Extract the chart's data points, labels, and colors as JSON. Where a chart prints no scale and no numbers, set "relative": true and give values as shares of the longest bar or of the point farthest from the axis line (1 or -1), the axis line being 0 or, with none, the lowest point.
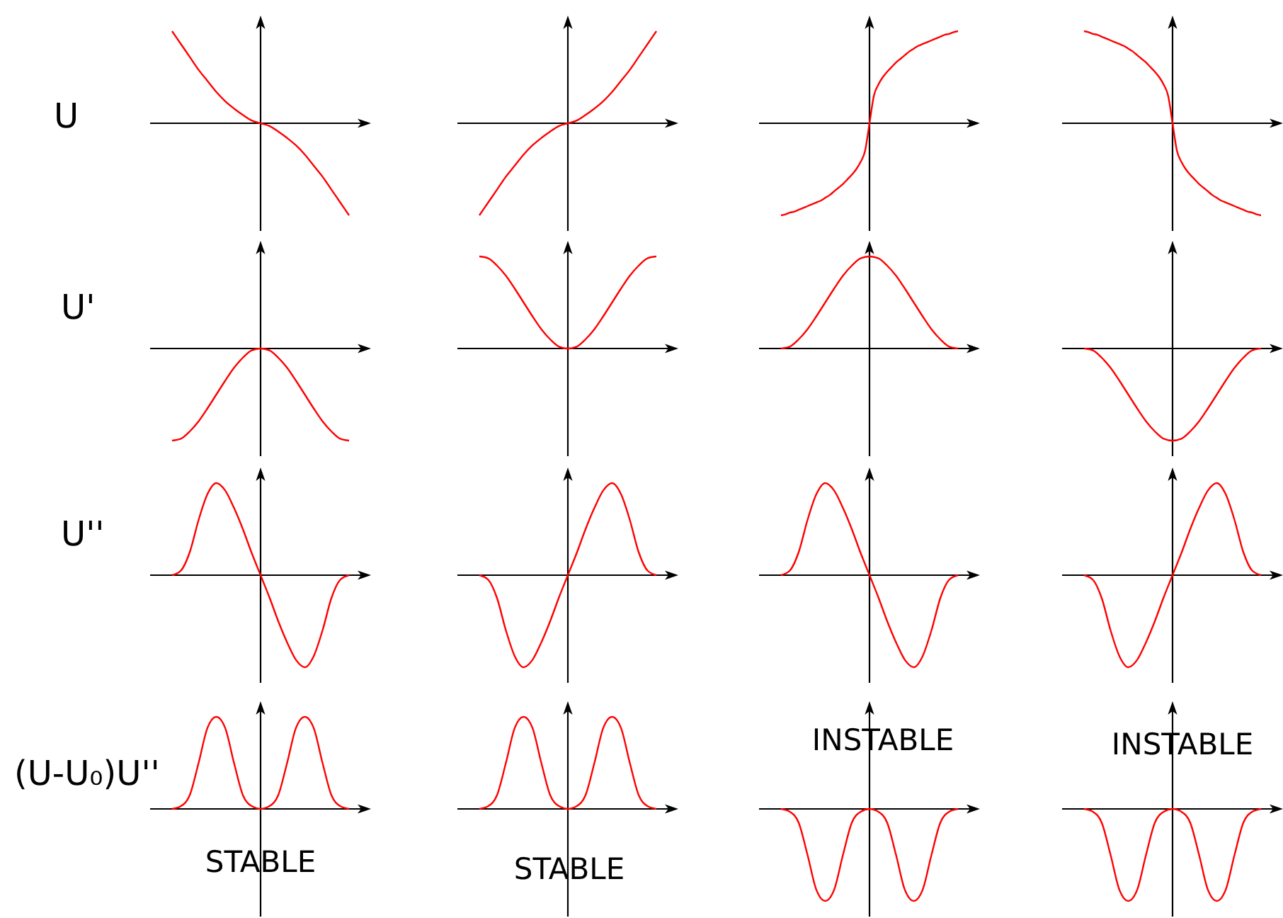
{
  "chart_data": [
    {
      "type": "line",
      "relative": true,
      "ylabel": "U",
      "categories": [
        null,
        null,
        null,
        null,
        null,
        null,
        null,
        null,
        null,
        null,
        null,
        null,
        null,
        null,
        null,
        null,
        null,
        null,
        null,
        null,
        null
      ],
      "series": [
        {
          "color": "#ff0000",
          "values": [
            1,
            0.86,
            0.72,
            0.58,
            0.46,
            0.34,
            0.24,
            0.16,
            0.09,
            0.03,
            0,
            -0.03,
            -0.09,
            -0.16,
            -0.24,
            -0.34,
            -0.46,
            -0.58,
            -0.72,
            -0.86,
            -1
          ]
        }
      ]
    },
    {
      "type": "line",
      "relative": true,
      "categories": [
        null,
        null,
        null,
        null,
        null,
        null,
        null,
        null,
        null,
        null,
        null,
        null,
        null,
        null,
        null,
        null,
        null,
        null,
        null,
        null,
        null
      ],
      "series": [
        {
          "color": "#ff0000",
          "values": [
            -1,
            -0.86,
            -0.72,
            -0.58,
            -0.46,
            -0.34,
            -0.24,
            -0.16,
            -0.09,
            -0.03,
            0,
            0.03,
            0.09,
            0.16,
            0.24,
            0.34,
            0.46,
            0.58,
            0.72,
            0.86,
            1
          ]
        }
      ]
    },
    {
      "type": "line",
      "relative": true,
      "categories": [
        null,
        null,
        null,
        null,
        null,
        null,
        null,
        null,
        null,
        null,
        null,
        null,
        null,
        null,
        null,
        null,
        null,
        null,
        null,
        null,
        null,
        null,
        null,
        null,
        null,
        null,
        null,
        null,
        null,
        null,
        null,
        null,
        null,
        null,
        null,
        null,
        null,
        null,
        null,
        null,
        null
      ],
      "series": [
        {
          "color": "#ff0000",
          "values": [
            -1,
            -0.99,
            -0.97,
            -0.96,
            -0.94,
            -0.92,
            -0.9,
            -0.88,
            -0.86,
            -0.84,
            -0.81,
            -0.78,
            -0.74,
            -0.7,
            -0.66,
            -0.61,
            -0.56,
            -0.5,
            -0.42,
            -0.3,
            0,
            0.3,
            0.42,
            0.5,
            0.56,
            0.61,
            0.66,
            0.7,
            0.74,
            0.78,
            0.81,
            0.84,
            0.86,
            0.88,
            0.9,
            0.92,
            0.94,
            0.96,
            0.97,
            0.99,
            1
          ]
        }
      ]
    },
    {
      "type": "line",
      "relative": true,
      "categories": [
        null,
        null,
        null,
        null,
        null,
        null,
        null,
        null,
        null,
        null,
        null,
        null,
        null,
        null,
        null,
        null,
        null,
        null,
        null,
        null,
        null,
        null,
        null,
        null,
        null,
        null,
        null,
        null,
        null,
        null,
        null,
        null,
        null,
        null,
        null,
        null,
        null,
        null,
        null,
        null,
        null
      ],
      "series": [
        {
          "color": "#ff0000",
          "values": [
            1,
            0.99,
            0.97,
            0.96,
            0.94,
            0.92,
            0.9,
            0.88,
            0.86,
            0.84,
            0.81,
            0.78,
            0.74,
            0.7,
            0.66,
            0.61,
            0.56,
            0.5,
            0.42,
            0.3,
            0,
            -0.3,
            -0.42,
            -0.5,
            -0.56,
            -0.61,
            -0.66,
            -0.7,
            -0.74,
            -0.78,
            -0.81,
            -0.84,
            -0.86,
            -0.88,
            -0.9,
            -0.92,
            -0.94,
            -0.96,
            -0.97,
            -0.99,
            -1
          ]
        }
      ]
    },
    {
      "type": "line",
      "relative": true,
      "ylabel": "U'",
      "categories": [
        null,
        null,
        null,
        null,
        null,
        null,
        null,
        null,
        null,
        null,
        null,
        null,
        null,
        null,
        null,
        null,
        null,
        null,
        null,
        null,
        null
      ],
      "series": [
        {
          "color": "#ff0000",
          "values": [
            -1,
            -0.98,
            -0.9,
            -0.79,
            -0.65,
            -0.5,
            -0.35,
            -0.21,
            -0.1,
            -0.02,
            0,
            -0.02,
            -0.1,
            -0.21,
            -0.35,
            -0.5,
            -0.65,
            -0.79,
            -0.9,
            -0.98,
            -1
          ]
        }
      ]
    },
    {
      "type": "line",
      "relative": true,
      "categories": [
        null,
        null,
        null,
        null,
        null,
        null,
        null,
        null,
        null,
        null,
        null,
        null,
        null,
        null,
        null,
        null,
        null,
        null,
        null,
        null,
        null
      ],
      "series": [
        {
          "color": "#ff0000",
          "values": [
            1,
            0.98,
            0.9,
            0.79,
            0.65,
            0.5,
            0.35,
            0.21,
            0.1,
            0.02,
            0,
            0.02,
            0.1,
            0.21,
            0.35,
            0.5,
            0.65,
            0.79,
            0.9,
            0.98,
            1
          ]
        }
      ]
    },
    {
      "type": "line",
      "relative": true,
      "categories": [
        null,
        null,
        null,
        null,
        null,
        null,
        null,
        null,
        null,
        null,
        null,
        null,
        null,
        null,
        null,
        null,
        null,
        null,
        null,
        null,
        null
      ],
      "series": [
        {
          "color": "#ff0000",
          "values": [
            0,
            0.02,
            0.1,
            0.21,
            0.35,
            0.5,
            0.65,
            0.79,
            0.9,
            0.98,
            1,
            0.98,
            0.9,
            0.79,
            0.65,
            0.5,
            0.35,
            0.21,
            0.1,
            0.02,
            0
          ]
        }
      ]
    },
    {
      "type": "line",
      "relative": true,
      "categories": [
        null,
        null,
        null,
        null,
        null,
        null,
        null,
        null,
        null,
        null,
        null,
        null,
        null,
        null,
        null,
        null,
        null,
        null,
        null,
        null,
        null
      ],
      "series": [
        {
          "color": "#ff0000",
          "values": [
            0,
            -0.02,
            -0.1,
            -0.21,
            -0.35,
            -0.5,
            -0.65,
            -0.79,
            -0.9,
            -0.98,
            -1,
            -0.98,
            -0.9,
            -0.79,
            -0.65,
            -0.5,
            -0.35,
            -0.21,
            -0.1,
            -0.02,
            0
          ]
        }
      ]
    },
    {
      "type": "line",
      "relative": true,
      "ylabel": "U''",
      "categories": [
        null,
        null,
        null,
        null,
        null,
        null,
        null,
        null,
        null,
        null,
        null,
        null,
        null,
        null,
        null,
        null,
        null,
        null,
        null,
        null,
        null
      ],
      "series": [
        {
          "color": "#ff0000",
          "values": [
            0,
            0.05,
            0.25,
            0.6,
            0.88,
            1,
            0.92,
            0.73,
            0.5,
            0.24,
            0,
            -0.24,
            -0.5,
            -0.73,
            -0.92,
            -1,
            -0.88,
            -0.6,
            -0.25,
            -0.05,
            0
          ]
        }
      ]
    },
    {
      "type": "line",
      "relative": true,
      "categories": [
        null,
        null,
        null,
        null,
        null,
        null,
        null,
        null,
        null,
        null,
        null,
        null,
        null,
        null,
        null,
        null,
        null,
        null,
        null,
        null,
        null
      ],
      "series": [
        {
          "color": "#ff0000",
          "values": [
            0,
            -0.05,
            -0.25,
            -0.6,
            -0.88,
            -1,
            -0.92,
            -0.73,
            -0.5,
            -0.24,
            0,
            0.24,
            0.5,
            0.73,
            0.92,
            1,
            0.88,
            0.6,
            0.25,
            0.05,
            0
          ]
        }
      ]
    },
    {
      "type": "line",
      "relative": true,
      "categories": [
        null,
        null,
        null,
        null,
        null,
        null,
        null,
        null,
        null,
        null,
        null,
        null,
        null,
        null,
        null,
        null,
        null,
        null,
        null,
        null,
        null
      ],
      "series": [
        {
          "color": "#ff0000",
          "values": [
            0,
            0.05,
            0.25,
            0.6,
            0.88,
            1,
            0.92,
            0.73,
            0.5,
            0.24,
            0,
            -0.24,
            -0.5,
            -0.73,
            -0.92,
            -1,
            -0.88,
            -0.6,
            -0.25,
            -0.05,
            0
          ]
        }
      ]
    },
    {
      "type": "line",
      "relative": true,
      "categories": [
        null,
        null,
        null,
        null,
        null,
        null,
        null,
        null,
        null,
        null,
        null,
        null,
        null,
        null,
        null,
        null,
        null,
        null,
        null,
        null,
        null
      ],
      "series": [
        {
          "color": "#ff0000",
          "values": [
            0,
            -0.05,
            -0.25,
            -0.6,
            -0.88,
            -1,
            -0.92,
            -0.73,
            -0.5,
            -0.24,
            0,
            0.24,
            0.5,
            0.73,
            0.92,
            1,
            0.88,
            0.6,
            0.25,
            0.05,
            0
          ]
        }
      ]
    },
    {
      "type": "line",
      "relative": true,
      "ylabel": "(U-U₀)U''",
      "annotations": [
        "STABLE"
      ],
      "categories": [
        null,
        null,
        null,
        null,
        null,
        null,
        null,
        null,
        null,
        null,
        null,
        null,
        null,
        null,
        null,
        null,
        null,
        null,
        null,
        null,
        null
      ],
      "series": [
        {
          "color": "#ff0000",
          "values": [
            0,
            0.03,
            0.15,
            0.5,
            0.88,
            1,
            0.88,
            0.5,
            0.15,
            0.03,
            0,
            0.03,
            0.15,
            0.5,
            0.88,
            1,
            0.88,
            0.5,
            0.15,
            0.03,
            0
          ]
        }
      ]
    },
    {
      "type": "line",
      "relative": true,
      "annotations": [
        "STABLE"
      ],
      "categories": [
        null,
        null,
        null,
        null,
        null,
        null,
        null,
        null,
        null,
        null,
        null,
        null,
        null,
        null,
        null,
        null,
        null,
        null,
        null,
        null,
        null
      ],
      "series": [
        {
          "color": "#ff0000",
          "values": [
            0,
            0.03,
            0.15,
            0.5,
            0.88,
            1,
            0.88,
            0.5,
            0.15,
            0.03,
            0,
            0.03,
            0.15,
            0.5,
            0.88,
            1,
            0.88,
            0.5,
            0.15,
            0.03,
            0
          ]
        }
      ]
    },
    {
      "type": "line",
      "relative": true,
      "annotations": [
        "INSTABLE"
      ],
      "categories": [
        null,
        null,
        null,
        null,
        null,
        null,
        null,
        null,
        null,
        null,
        null,
        null,
        null,
        null,
        null,
        null,
        null,
        null,
        null,
        null,
        null
      ],
      "series": [
        {
          "color": "#ff0000",
          "values": [
            0,
            -0.03,
            -0.15,
            -0.5,
            -0.88,
            -1,
            -0.88,
            -0.5,
            -0.15,
            -0.03,
            0,
            -0.03,
            -0.15,
            -0.5,
            -0.88,
            -1,
            -0.88,
            -0.5,
            -0.15,
            -0.03,
            0
          ]
        }
      ]
    },
    {
      "type": "line",
      "relative": true,
      "annotations": [
        "INSTABLE"
      ],
      "categories": [
        null,
        null,
        null,
        null,
        null,
        null,
        null,
        null,
        null,
        null,
        null,
        null,
        null,
        null,
        null,
        null,
        null,
        null,
        null,
        null,
        null
      ],
      "series": [
        {
          "color": "#ff0000",
          "values": [
            0,
            -0.03,
            -0.15,
            -0.5,
            -0.88,
            -1,
            -0.88,
            -0.5,
            -0.15,
            -0.03,
            0,
            -0.03,
            -0.15,
            -0.5,
            -0.88,
            -1,
            -0.88,
            -0.5,
            -0.15,
            -0.03,
            0
          ]
        }
      ]
    }
  ]
}
